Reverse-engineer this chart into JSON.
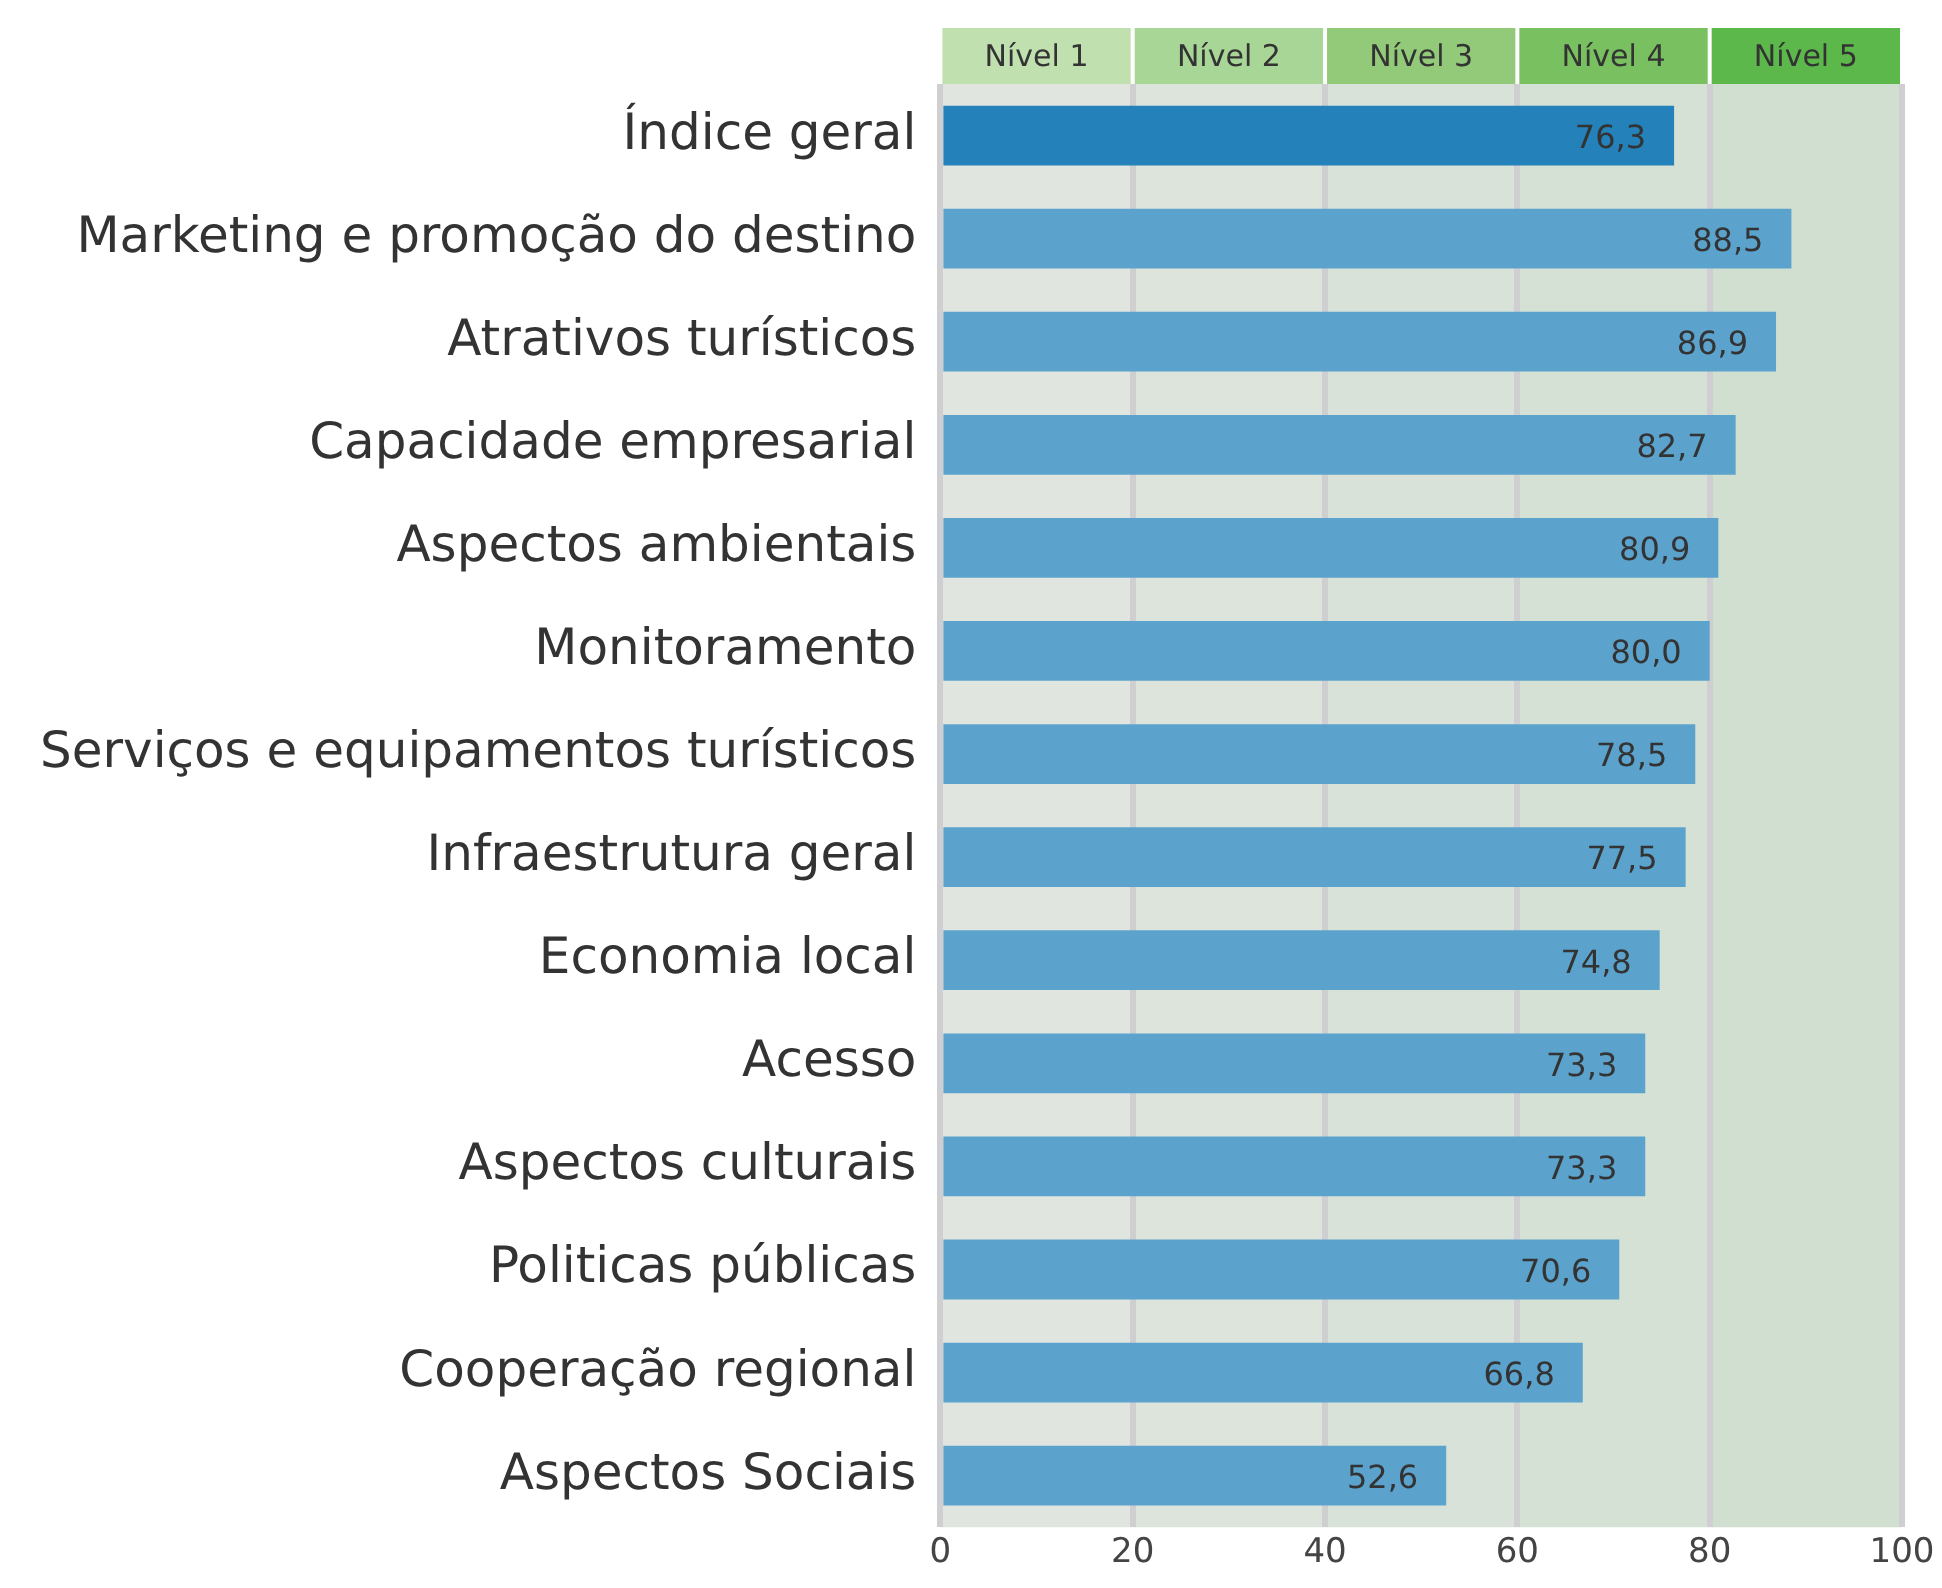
{
  "chart_data": {
    "type": "bar",
    "orientation": "horizontal",
    "categories": [
      "Índice geral",
      "Marketing e promoção do destino",
      "Atrativos turísticos",
      "Capacidade empresarial",
      "Aspectos ambientais",
      "Monitoramento",
      "Serviços e equipamentos turísticos",
      "Infraestrutura geral",
      "Economia local",
      "Acesso",
      "Aspectos culturais",
      "Politicas públicas",
      "Cooperação regional",
      "Aspectos Sociais"
    ],
    "values": [
      76.3,
      88.5,
      86.9,
      82.7,
      80.9,
      80.0,
      78.5,
      77.5,
      74.8,
      73.3,
      73.3,
      70.6,
      66.8,
      52.6
    ],
    "value_labels": [
      "76,3",
      "88,5",
      "86,9",
      "82,7",
      "80,9",
      "80,0",
      "78,5",
      "77,5",
      "74,8",
      "73,3",
      "73,3",
      "70,6",
      "66,8",
      "52,6"
    ],
    "colors": [
      "#2481b9",
      "#5ba3cd",
      "#5ba3cd",
      "#5ba3cd",
      "#5ba3cd",
      "#5ba3cd",
      "#5ba3cd",
      "#5ba3cd",
      "#5ba3cd",
      "#5ba3cd",
      "#5ba3cd",
      "#5ba3cd",
      "#5ba3cd",
      "#5ba3cd"
    ],
    "xlim": [
      0,
      100
    ],
    "xticks": [
      0,
      20,
      40,
      60,
      80,
      100
    ],
    "grid": "x",
    "legend": false,
    "bands": [
      {
        "axis": "x",
        "from": 0,
        "to": 20,
        "label": "Nível 1",
        "color": "#c0e0b0"
      },
      {
        "axis": "x",
        "from": 20,
        "to": 40,
        "label": "Nível 2",
        "color": "#a8d696"
      },
      {
        "axis": "x",
        "from": 40,
        "to": 60,
        "label": "Nível 3",
        "color": "#93ca7a"
      },
      {
        "axis": "x",
        "from": 60,
        "to": 80,
        "label": "Nível 4",
        "color": "#78c060"
      },
      {
        "axis": "x",
        "from": 80,
        "to": 100,
        "label": "Nível 5",
        "color": "#5cb84a"
      }
    ]
  }
}
